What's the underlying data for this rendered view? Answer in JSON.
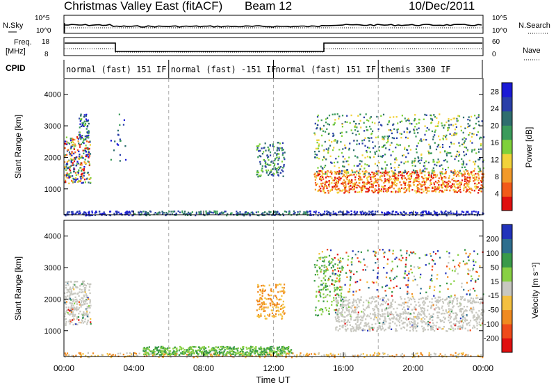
{
  "header": {
    "title": "Christmas Valley East (fitACF)",
    "beam": "Beam 12",
    "date": "10/Dec/2011"
  },
  "strip_labels": {
    "nsky": "N.Sky",
    "nsearch": "N.Search",
    "freq": "Freq.",
    "freq_unit": "[MHz]",
    "nave": "Nave",
    "cpid": "CPID",
    "noise_ticks": [
      "10^5",
      "10^0"
    ],
    "freq_ticks": [
      "18",
      "8"
    ],
    "nave_ticks": [
      "60",
      "0"
    ]
  },
  "cpid_segments": [
    {
      "label": "normal (fast) 151 IF",
      "start": 0,
      "end": 6
    },
    {
      "label": "normal (fast) -151 IF",
      "start": 6,
      "end": 12
    },
    {
      "label": "normal (fast) 151 IF",
      "start": 12,
      "end": 18
    },
    {
      "label": "themis 3300 IF",
      "start": 18,
      "end": 24
    }
  ],
  "chart_data": [
    {
      "type": "heatmap",
      "name": "power",
      "ylabel": "Slant Range [km]",
      "xlabel": "Time UT",
      "xlim": [
        0,
        24
      ],
      "ylim": [
        180,
        4500
      ],
      "x_tick_labels": [
        "00:00",
        "04:00",
        "08:00",
        "12:00",
        "16:00",
        "20:00",
        "00:00"
      ],
      "y_tick_labels": [
        "1000",
        "2000",
        "3000",
        "4000"
      ],
      "y_ticks": [
        1000,
        2000,
        3000,
        4000
      ],
      "colorbar": {
        "label": "Power [dB]",
        "tick_labels": [
          "4",
          "8",
          "12",
          "16",
          "20",
          "24",
          "28"
        ],
        "ticks": [
          4,
          8,
          12,
          16,
          20,
          24,
          28
        ],
        "range": [
          0,
          30
        ],
        "colors": [
          "#1a1ad6",
          "#2a3fa8",
          "#2f6e6e",
          "#3b9b5b",
          "#7fd13a",
          "#f2d33a",
          "#f29a2a",
          "#f25a1a",
          "#e01010"
        ]
      }
    },
    {
      "type": "heatmap",
      "name": "velocity",
      "ylabel": "Slant Range [km]",
      "xlabel": "Time UT",
      "xlim": [
        0,
        24
      ],
      "ylim": [
        180,
        4500
      ],
      "x_tick_labels": [
        "00:00",
        "04:00",
        "08:00",
        "12:00",
        "16:00",
        "20:00",
        "00:00"
      ],
      "y_tick_labels": [
        "1000",
        "2000",
        "3000",
        "4000"
      ],
      "y_ticks": [
        1000,
        2000,
        3000,
        4000
      ],
      "colorbar": {
        "label": "Velocity [m s⁻¹]",
        "tick_labels": [
          "200",
          "100",
          "50",
          "15",
          "-15",
          "-50",
          "-100",
          "-200"
        ],
        "ticks": [
          200,
          100,
          50,
          15,
          -15,
          -50,
          -100,
          -200
        ],
        "colors": [
          "#2233bb",
          "#2e6e8e",
          "#3a9a4a",
          "#88d044",
          "#c8c8c0",
          "#f4c040",
          "#f08a20",
          "#ef4a1a",
          "#e01010"
        ]
      }
    }
  ]
}
